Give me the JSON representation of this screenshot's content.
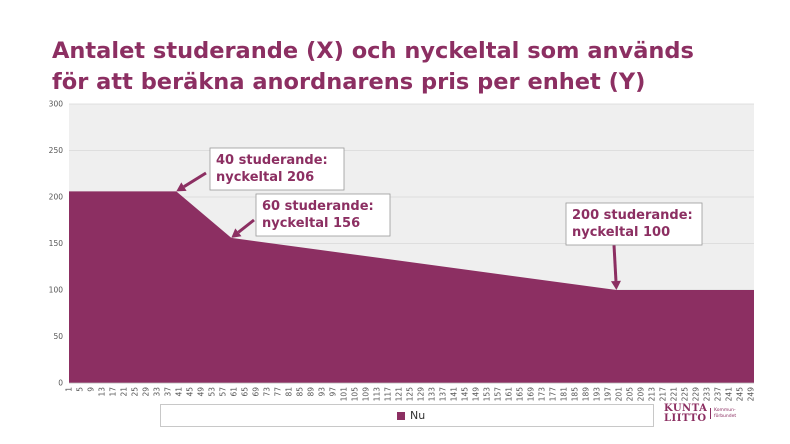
{
  "title_lines": [
    "Antalet studerande (X) och nyckeltal som används",
    "för att beräkna anordnarens pris per enhet (Y)"
  ],
  "colors": {
    "series": "#8c2f62",
    "plot_background": "#efefef",
    "gridline": "#d8d8d8",
    "title": "#8c2f62"
  },
  "chart_data": {
    "type": "area",
    "title": "Antalet studerande (X) och nyckeltal som används för att beräkna anordnarens pris per enhet (Y)",
    "xlabel": "",
    "ylabel": "",
    "xlim": [
      1,
      250
    ],
    "ylim": [
      0,
      300
    ],
    "y_ticks": [
      0,
      50,
      100,
      150,
      200,
      250,
      300
    ],
    "x_ticks": [
      1,
      5,
      9,
      13,
      17,
      21,
      25,
      29,
      33,
      37,
      41,
      45,
      49,
      53,
      57,
      61,
      65,
      69,
      73,
      77,
      81,
      85,
      89,
      93,
      97,
      101,
      105,
      109,
      113,
      117,
      121,
      125,
      129,
      133,
      137,
      141,
      145,
      149,
      153,
      157,
      161,
      165,
      169,
      173,
      177,
      181,
      185,
      189,
      193,
      197,
      201,
      205,
      209,
      213,
      217,
      221,
      225,
      229,
      233,
      237,
      241,
      245,
      249
    ],
    "grid": true,
    "legend_position": "bottom",
    "series": [
      {
        "name": "Nu",
        "points": [
          [
            1,
            206
          ],
          [
            40,
            206
          ],
          [
            60,
            156
          ],
          [
            200,
            100
          ],
          [
            250,
            100
          ]
        ]
      }
    ],
    "annotations": [
      {
        "lines": [
          "40 studerande:",
          "nyckeltal 206"
        ],
        "x": 40,
        "y": 206
      },
      {
        "lines": [
          "60 studerande:",
          "nyckeltal 156"
        ],
        "x": 60,
        "y": 156
      },
      {
        "lines": [
          "200 studerande:",
          "nyckeltal 100"
        ],
        "x": 200,
        "y": 100
      }
    ]
  },
  "logo": {
    "main_lines": [
      "KUNTA",
      "LIITTO"
    ],
    "sub_lines": [
      "Kommun-",
      "förbundet"
    ]
  }
}
